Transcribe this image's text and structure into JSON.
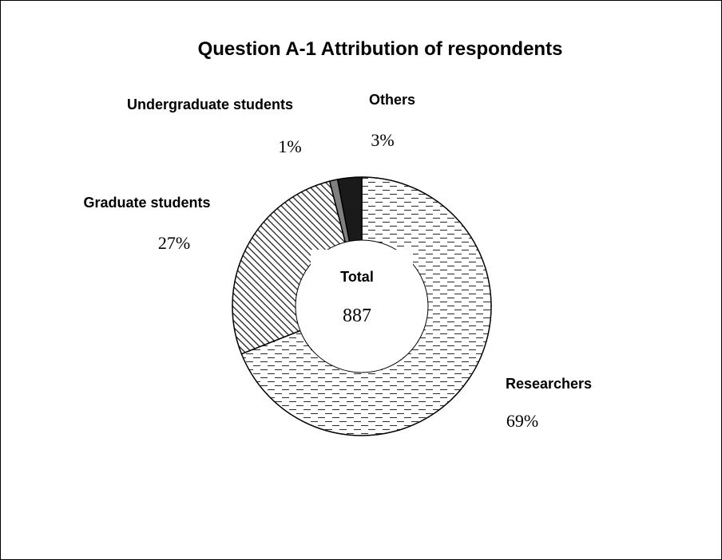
{
  "chart_data": {
    "type": "pie",
    "variant": "donut",
    "title": "Question A-1 Attribution of respondents",
    "categories": [
      "Researchers",
      "Graduate students",
      "Undergraduate students",
      "Others"
    ],
    "values": [
      69,
      27,
      1,
      3
    ],
    "value_labels": [
      "69%",
      "27%",
      "1%",
      "3%"
    ],
    "fills": [
      "dashed",
      "diagonal-hatch",
      "gray",
      "black"
    ],
    "colors": {
      "Researchers": "#ffffff",
      "Graduate students": "#ffffff",
      "Undergraduate students": "#808080",
      "Others": "#1a1a1a"
    },
    "center": {
      "label": "Total",
      "value": "887"
    },
    "legend": "none"
  }
}
